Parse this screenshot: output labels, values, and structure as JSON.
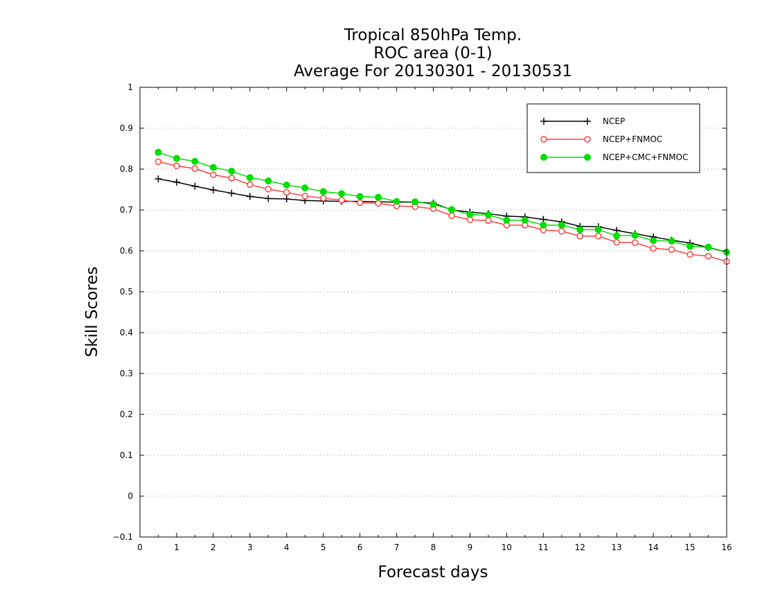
{
  "chart_data": {
    "type": "line",
    "title_lines": [
      "Tropical 850hPa Temp.",
      "ROC area (0-1)",
      "Average For 20130301 - 20130531"
    ],
    "xlabel": "Forecast days",
    "ylabel": "Skill Scores",
    "xlim": [
      0,
      16
    ],
    "ylim": [
      -0.1,
      1
    ],
    "xticks": [
      "0",
      "1",
      "2",
      "3",
      "4",
      "5",
      "6",
      "7",
      "8",
      "9",
      "10",
      "11",
      "12",
      "13",
      "14",
      "15",
      "16"
    ],
    "yticks": [
      "-0.1",
      "0",
      "0.1",
      "0.2",
      "0.3",
      "0.4",
      "0.5",
      "0.6",
      "0.7",
      "0.8",
      "0.9",
      "1"
    ],
    "grid": "horizontal dotted",
    "legend_position": "top-right",
    "x": [
      0.5,
      1,
      1.5,
      2,
      2.5,
      3,
      3.5,
      4,
      4.5,
      5,
      5.5,
      6,
      6.5,
      7,
      7.5,
      8,
      8.5,
      9,
      9.5,
      10,
      10.5,
      11,
      11.5,
      12,
      12.5,
      13,
      13.5,
      14,
      14.5,
      15,
      15.5,
      16
    ],
    "series": [
      {
        "name": "NCEP",
        "color": "#000000",
        "marker": "plus",
        "values": [
          0.776,
          0.768,
          0.758,
          0.749,
          0.741,
          0.733,
          0.728,
          0.727,
          0.723,
          0.722,
          0.721,
          0.721,
          0.72,
          0.719,
          0.719,
          0.717,
          0.7,
          0.695,
          0.691,
          0.685,
          0.683,
          0.677,
          0.671,
          0.66,
          0.659,
          0.65,
          0.642,
          0.634,
          0.626,
          0.619,
          0.608,
          0.597
        ]
      },
      {
        "name": "NCEP+FNMOC",
        "color": "#ff4040",
        "marker": "open-circle",
        "values": [
          0.818,
          0.808,
          0.801,
          0.786,
          0.778,
          0.762,
          0.751,
          0.743,
          0.734,
          0.729,
          0.724,
          0.718,
          0.716,
          0.71,
          0.708,
          0.703,
          0.686,
          0.676,
          0.674,
          0.663,
          0.663,
          0.651,
          0.648,
          0.636,
          0.636,
          0.621,
          0.62,
          0.606,
          0.603,
          0.591,
          0.587,
          0.574
        ]
      },
      {
        "name": "NCEP+CMC+FNMOC",
        "color": "#00dd00",
        "marker": "filled-circle",
        "values": [
          0.841,
          0.826,
          0.819,
          0.804,
          0.795,
          0.779,
          0.771,
          0.761,
          0.754,
          0.745,
          0.74,
          0.733,
          0.731,
          0.721,
          0.72,
          0.714,
          0.701,
          0.689,
          0.688,
          0.675,
          0.675,
          0.663,
          0.663,
          0.652,
          0.652,
          0.637,
          0.638,
          0.625,
          0.624,
          0.611,
          0.609,
          0.597
        ]
      }
    ]
  }
}
